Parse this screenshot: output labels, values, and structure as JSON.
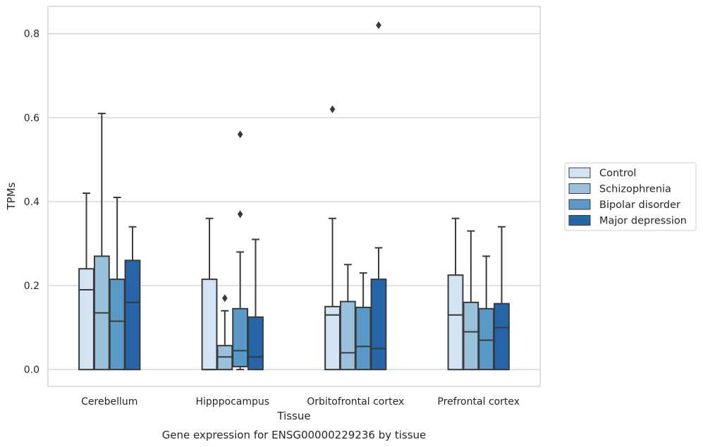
{
  "chart_data": {
    "type": "box",
    "categories": [
      "Cerebellum",
      "Hipppocampus",
      "Orbitofrontal cortex",
      "Prefrontal cortex"
    ],
    "xlabel": "Tissue",
    "ylabel": "TPMs",
    "caption": "Gene expression for ENSG00000229236 by tissue",
    "ylim": [
      -0.04,
      0.865
    ],
    "yticks": [
      0.0,
      0.2,
      0.4,
      0.6,
      0.8
    ],
    "ytick_labels": [
      "0.0",
      "0.2",
      "0.4",
      "0.6",
      "0.8"
    ],
    "grid": true,
    "legend_position": "right",
    "series": [
      {
        "name": "Control",
        "color": "#d2e3f3",
        "boxes": [
          {
            "min": 0.0,
            "q1": 0.0,
            "median": 0.19,
            "q3": 0.24,
            "max": 0.42,
            "outliers": []
          },
          {
            "min": 0.0,
            "q1": 0.0,
            "median": 0.0,
            "q3": 0.215,
            "max": 0.36,
            "outliers": []
          },
          {
            "min": 0.0,
            "q1": 0.0,
            "median": 0.13,
            "q3": 0.15,
            "max": 0.36,
            "outliers": [
              0.62
            ]
          },
          {
            "min": 0.0,
            "q1": 0.0,
            "median": 0.13,
            "q3": 0.225,
            "max": 0.36,
            "outliers": []
          }
        ]
      },
      {
        "name": "Schizophrenia",
        "color": "#9ac1dc",
        "boxes": [
          {
            "min": 0.0,
            "q1": 0.0,
            "median": 0.135,
            "q3": 0.27,
            "max": 0.61,
            "outliers": []
          },
          {
            "min": 0.0,
            "q1": 0.0,
            "median": 0.03,
            "q3": 0.057,
            "max": 0.14,
            "outliers": [
              0.17
            ]
          },
          {
            "min": 0.0,
            "q1": 0.0,
            "median": 0.04,
            "q3": 0.162,
            "max": 0.25,
            "outliers": []
          },
          {
            "min": 0.0,
            "q1": 0.0,
            "median": 0.09,
            "q3": 0.16,
            "max": 0.33,
            "outliers": []
          }
        ]
      },
      {
        "name": "Bipolar disorder",
        "color": "#5a9ac8",
        "boxes": [
          {
            "min": 0.0,
            "q1": 0.0,
            "median": 0.115,
            "q3": 0.215,
            "max": 0.41,
            "outliers": []
          },
          {
            "min": 0.0,
            "q1": 0.007,
            "median": 0.045,
            "q3": 0.145,
            "max": 0.28,
            "outliers": [
              0.37,
              0.56
            ]
          },
          {
            "min": 0.0,
            "q1": 0.0,
            "median": 0.055,
            "q3": 0.148,
            "max": 0.23,
            "outliers": []
          },
          {
            "min": 0.0,
            "q1": 0.0,
            "median": 0.07,
            "q3": 0.145,
            "max": 0.27,
            "outliers": []
          }
        ]
      },
      {
        "name": "Major depression",
        "color": "#2565a8",
        "boxes": [
          {
            "min": 0.0,
            "q1": 0.0,
            "median": 0.16,
            "q3": 0.26,
            "max": 0.34,
            "outliers": []
          },
          {
            "min": 0.0,
            "q1": 0.0,
            "median": 0.03,
            "q3": 0.125,
            "max": 0.31,
            "outliers": []
          },
          {
            "min": 0.0,
            "q1": 0.0,
            "median": 0.05,
            "q3": 0.215,
            "max": 0.29,
            "outliers": [
              0.82
            ]
          },
          {
            "min": 0.0,
            "q1": 0.0,
            "median": 0.1,
            "q3": 0.157,
            "max": 0.34,
            "outliers": []
          }
        ]
      }
    ]
  }
}
